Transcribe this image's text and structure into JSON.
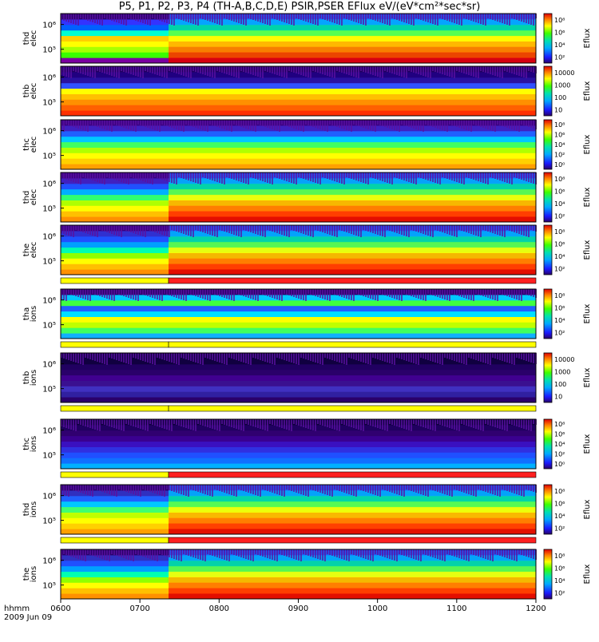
{
  "title": "P5, P1, P2, P3, P4 (TH-A,B,C,D,E) PSIR,PSER EFlux eV/(eV*cm²*sec*sr)",
  "x_axis": {
    "ticks": [
      "0600",
      "0700",
      "0800",
      "0900",
      "1000",
      "1100",
      "1200"
    ],
    "corner_label": "hhmm",
    "date_label": "2009 Jun 09"
  },
  "colorbar_label": "Eflux",
  "chart_data": [
    {
      "type": "heatmap",
      "probe": "thd",
      "species": "elec",
      "ylabel": "thd elec",
      "yticks": [
        "10⁵",
        "10⁶"
      ],
      "cbar_ticks": [
        "10²",
        "10⁴",
        "10⁶",
        "10⁸"
      ]
    },
    {
      "type": "heatmap",
      "probe": "thb",
      "species": "elec",
      "ylabel": "thb elec",
      "yticks": [
        "10⁵",
        "10⁶"
      ],
      "cbar_ticks": [
        "10",
        "100",
        "1000",
        "10000"
      ]
    },
    {
      "type": "heatmap",
      "probe": "thc",
      "species": "elec",
      "ylabel": "thc elec",
      "yticks": [
        "10⁵",
        "10⁶"
      ],
      "cbar_ticks": [
        "10⁰",
        "10²",
        "10⁴",
        "10⁶",
        "10⁸"
      ]
    },
    {
      "type": "heatmap",
      "probe": "thd",
      "species": "elec",
      "ylabel": "thd elec",
      "yticks": [
        "10⁵",
        "10⁶"
      ],
      "cbar_ticks": [
        "10²",
        "10⁴",
        "10⁶",
        "10⁸"
      ]
    },
    {
      "type": "heatmap",
      "probe": "the",
      "species": "elec",
      "ylabel": "the elec",
      "yticks": [
        "10⁵",
        "10⁶"
      ],
      "cbar_ticks": [
        "10²",
        "10⁴",
        "10⁶",
        "10⁸"
      ]
    },
    {
      "type": "heatmap",
      "probe": "tha",
      "species": "ions",
      "ylabel": "tha ions",
      "yticks": [
        "10⁵",
        "10⁶"
      ],
      "cbar_ticks": [
        "10²",
        "10⁴",
        "10⁶",
        "10⁸"
      ]
    },
    {
      "type": "heatmap",
      "probe": "thb",
      "species": "ions",
      "ylabel": "thb ions",
      "yticks": [
        "10⁵",
        "10⁶"
      ],
      "cbar_ticks": [
        "10",
        "100",
        "1000",
        "10000"
      ]
    },
    {
      "type": "heatmap",
      "probe": "thc",
      "species": "ions",
      "ylabel": "thc ions",
      "yticks": [
        "10⁵",
        "10⁶"
      ],
      "cbar_ticks": [
        "10⁰",
        "10²",
        "10⁴",
        "10⁶",
        "10⁸"
      ]
    },
    {
      "type": "heatmap",
      "probe": "thd",
      "species": "ions",
      "ylabel": "thd ions",
      "yticks": [
        "10⁵",
        "10⁶"
      ],
      "cbar_ticks": [
        "10²",
        "10⁴",
        "10⁶",
        "10⁸"
      ]
    },
    {
      "type": "heatmap",
      "probe": "the",
      "species": "ions",
      "ylabel": "the ions",
      "yticks": [
        "10⁵",
        "10⁶"
      ],
      "cbar_ticks": [
        "10²",
        "10⁴",
        "10⁶",
        "10⁸"
      ]
    }
  ]
}
